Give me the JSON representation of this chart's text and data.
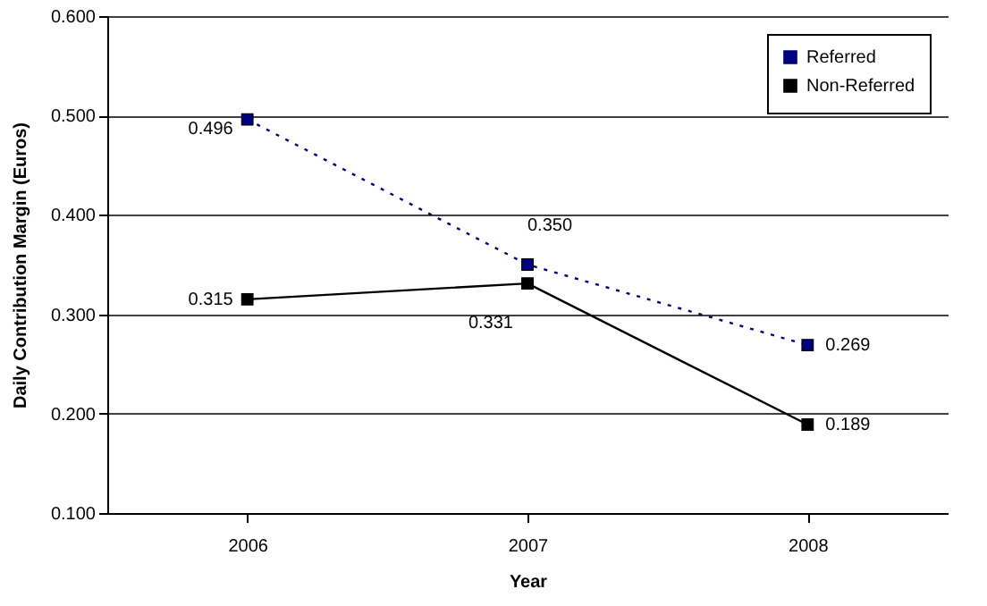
{
  "chart_data": {
    "type": "line",
    "xlabel": "Year",
    "ylabel": "Daily Contribution Margin (Euros)",
    "categories": [
      "2006",
      "2007",
      "2008"
    ],
    "series": [
      {
        "name": "Referred",
        "color": "#000080",
        "line_style": "dotted",
        "values": [
          0.496,
          0.35,
          0.269
        ],
        "value_labels": [
          "0.496",
          "0.350",
          "0.269"
        ]
      },
      {
        "name": "Non-Referred",
        "color": "#000000",
        "line_style": "solid",
        "values": [
          0.315,
          0.331,
          0.189
        ],
        "value_labels": [
          "0.315",
          "0.331",
          "0.189"
        ]
      }
    ],
    "ylim": [
      0.1,
      0.6
    ],
    "yticks": [
      {
        "value": 0.1,
        "label": "0.100"
      },
      {
        "value": 0.2,
        "label": "0.200"
      },
      {
        "value": 0.3,
        "label": "0.300"
      },
      {
        "value": 0.4,
        "label": "0.400"
      },
      {
        "value": 0.5,
        "label": "0.500"
      },
      {
        "value": 0.6,
        "label": "0.600"
      }
    ],
    "grid": "y",
    "legend": "top right",
    "marker": "square"
  }
}
